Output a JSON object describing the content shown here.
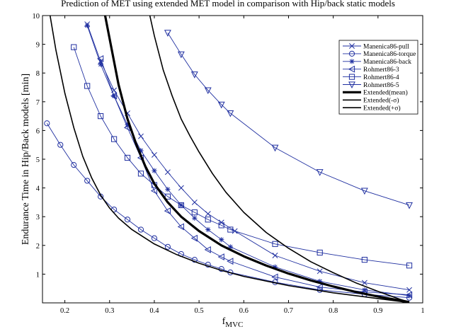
{
  "chart_data": {
    "type": "line",
    "title": "Prediction of MET using extended MET model in comparison with Hip/back static models",
    "xlabel_main": "f",
    "xlabel_sub": "MVC",
    "ylabel": "Endurance Time in Hip/Back models [min]",
    "xlim": [
      0.15,
      1.0
    ],
    "ylim": [
      0,
      10
    ],
    "xticks": [
      "0.2",
      "0.3",
      "0.4",
      "0.5",
      "0.6",
      "0.7",
      "0.8",
      "0.9",
      "1"
    ],
    "yticks": [
      "1",
      "2",
      "3",
      "4",
      "5",
      "6",
      "7",
      "8",
      "9",
      "10"
    ],
    "grid": false,
    "legend_position": "top-right",
    "colors": {
      "blue": "#1f2fa0",
      "black": "#000000"
    },
    "series": [
      {
        "name": "Manenica86-pull",
        "marker": "x",
        "color": "#1f2fa0",
        "x": [
          0.25,
          0.28,
          0.31,
          0.34,
          0.37,
          0.4,
          0.43,
          0.46,
          0.49,
          0.52,
          0.55,
          0.58,
          0.67,
          0.77,
          0.87,
          0.97
        ],
        "y": [
          9.7,
          8.4,
          7.4,
          6.6,
          5.8,
          5.15,
          4.55,
          4.0,
          3.5,
          3.1,
          2.8,
          2.5,
          1.65,
          1.1,
          0.7,
          0.45
        ]
      },
      {
        "name": "Manenica86-torque",
        "marker": "o",
        "color": "#1f2fa0",
        "x": [
          0.16,
          0.19,
          0.22,
          0.25,
          0.28,
          0.31,
          0.34,
          0.37,
          0.4,
          0.43,
          0.46,
          0.49,
          0.52,
          0.55,
          0.57,
          0.67,
          0.77,
          0.87,
          0.97
        ],
        "y": [
          6.25,
          5.5,
          4.8,
          4.25,
          3.7,
          3.25,
          2.9,
          2.55,
          2.25,
          1.95,
          1.7,
          1.5,
          1.33,
          1.18,
          1.06,
          0.72,
          0.45,
          0.3,
          0.18
        ]
      },
      {
        "name": "Manenica86-back",
        "marker": "*",
        "color": "#1f2fa0",
        "x": [
          0.25,
          0.28,
          0.31,
          0.34,
          0.37,
          0.4,
          0.43,
          0.46,
          0.49,
          0.52,
          0.55,
          0.57,
          0.67,
          0.77,
          0.87,
          0.97
        ],
        "y": [
          9.65,
          8.3,
          7.2,
          6.2,
          5.3,
          4.6,
          3.95,
          3.4,
          2.95,
          2.55,
          2.2,
          1.95,
          1.25,
          0.75,
          0.45,
          0.25
        ]
      },
      {
        "name": "Rohmert86-3",
        "marker": "<",
        "color": "#1f2fa0",
        "x": [
          0.28,
          0.31,
          0.34,
          0.37,
          0.4,
          0.43,
          0.46,
          0.49,
          0.52,
          0.55,
          0.57,
          0.67,
          0.77,
          0.87,
          0.97
        ],
        "y": [
          8.5,
          7.2,
          6.1,
          5.05,
          3.9,
          3.2,
          2.65,
          2.25,
          1.85,
          1.6,
          1.45,
          0.9,
          0.55,
          0.38,
          0.28
        ]
      },
      {
        "name": "Rohmert86-4",
        "marker": "s",
        "color": "#1f2fa0",
        "x": [
          0.22,
          0.25,
          0.28,
          0.31,
          0.34,
          0.37,
          0.4,
          0.43,
          0.46,
          0.49,
          0.52,
          0.55,
          0.57,
          0.67,
          0.77,
          0.87,
          0.97
        ],
        "y": [
          8.9,
          7.55,
          6.5,
          5.7,
          5.05,
          4.5,
          4.1,
          3.7,
          3.4,
          3.15,
          2.9,
          2.7,
          2.55,
          2.05,
          1.75,
          1.5,
          1.3
        ]
      },
      {
        "name": "Rohmert86-5",
        "marker": "v",
        "color": "#1f2fa0",
        "x": [
          0.43,
          0.46,
          0.49,
          0.52,
          0.55,
          0.57,
          0.67,
          0.77,
          0.87,
          0.97
        ],
        "y": [
          9.4,
          8.65,
          7.95,
          7.4,
          6.9,
          6.6,
          5.4,
          4.55,
          3.9,
          3.4
        ]
      },
      {
        "name": "Extended(mean)",
        "marker": "",
        "color": "#000000",
        "width": 3.2,
        "x": [
          0.29,
          0.3,
          0.32,
          0.34,
          0.36,
          0.38,
          0.4,
          0.43,
          0.46,
          0.5,
          0.55,
          0.6,
          0.65,
          0.7,
          0.75,
          0.8,
          0.85,
          0.9,
          0.95,
          0.97
        ],
        "y": [
          10,
          9.2,
          7.6,
          6.4,
          5.5,
          4.75,
          4.15,
          3.5,
          3.0,
          2.5,
          2.0,
          1.62,
          1.3,
          1.02,
          0.78,
          0.57,
          0.38,
          0.22,
          0.08,
          0.03
        ]
      },
      {
        "name": "Extended(-σ)",
        "marker": "",
        "color": "#000000",
        "width": 1.6,
        "x": [
          0.167,
          0.18,
          0.2,
          0.22,
          0.24,
          0.26,
          0.28,
          0.3,
          0.32,
          0.35,
          0.4,
          0.45,
          0.5,
          0.55,
          0.6,
          0.7,
          0.8,
          0.9,
          0.95,
          0.96
        ],
        "y": [
          10,
          8.8,
          7.3,
          6.1,
          5.1,
          4.35,
          3.75,
          3.3,
          2.95,
          2.55,
          2.05,
          1.68,
          1.38,
          1.13,
          0.92,
          0.6,
          0.35,
          0.15,
          0.05,
          0.02
        ]
      },
      {
        "name": "Extended(+σ)",
        "marker": "",
        "color": "#000000",
        "width": 1.6,
        "x": [
          0.39,
          0.4,
          0.42,
          0.44,
          0.46,
          0.48,
          0.5,
          0.53,
          0.56,
          0.6,
          0.65,
          0.7,
          0.75,
          0.8,
          0.85,
          0.9,
          0.95,
          0.97
        ],
        "y": [
          10,
          9.3,
          8.1,
          7.2,
          6.4,
          5.8,
          5.25,
          4.5,
          3.85,
          3.15,
          2.45,
          1.9,
          1.43,
          1.05,
          0.7,
          0.4,
          0.12,
          0.03
        ]
      }
    ]
  }
}
